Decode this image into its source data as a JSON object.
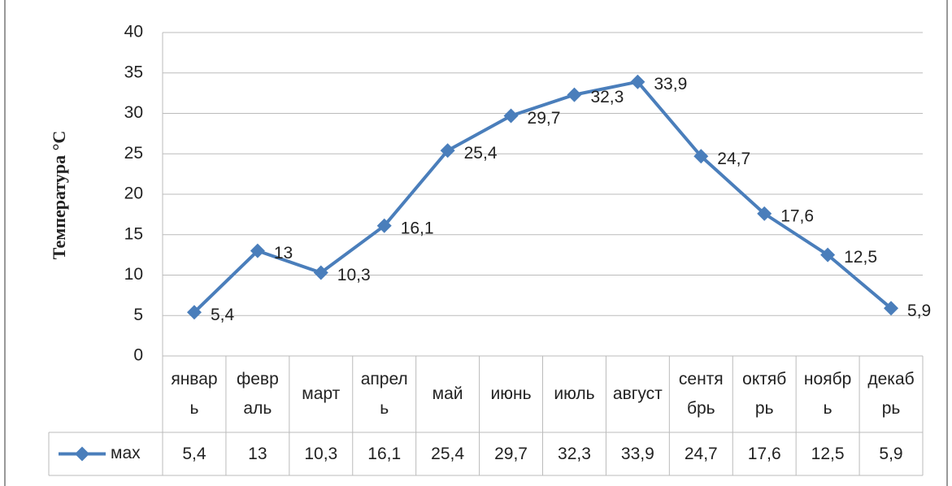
{
  "chart_data": {
    "type": "line",
    "y_label": "Температура °С",
    "categories": [
      "январь",
      "февраль",
      "март",
      "апрель",
      "май",
      "июнь",
      "июль",
      "август",
      "сентябрь",
      "октябрь",
      "ноябрь",
      "декабрь"
    ],
    "series": [
      {
        "name": "мах",
        "color": "#4a7ebb",
        "values": [
          5.4,
          13,
          10.3,
          16.1,
          25.4,
          29.7,
          32.3,
          33.9,
          24.7,
          17.6,
          12.5,
          5.9
        ],
        "value_labels": [
          "5,4",
          "13",
          "10,3",
          "16,1",
          "25,4",
          "29,7",
          "32,3",
          "33,9",
          "24,7",
          "17,6",
          "12,5",
          "5,9"
        ]
      }
    ],
    "ylim": [
      0,
      40
    ],
    "yticks": [
      0,
      5,
      10,
      15,
      20,
      25,
      30,
      35,
      40
    ],
    "grid": true
  }
}
